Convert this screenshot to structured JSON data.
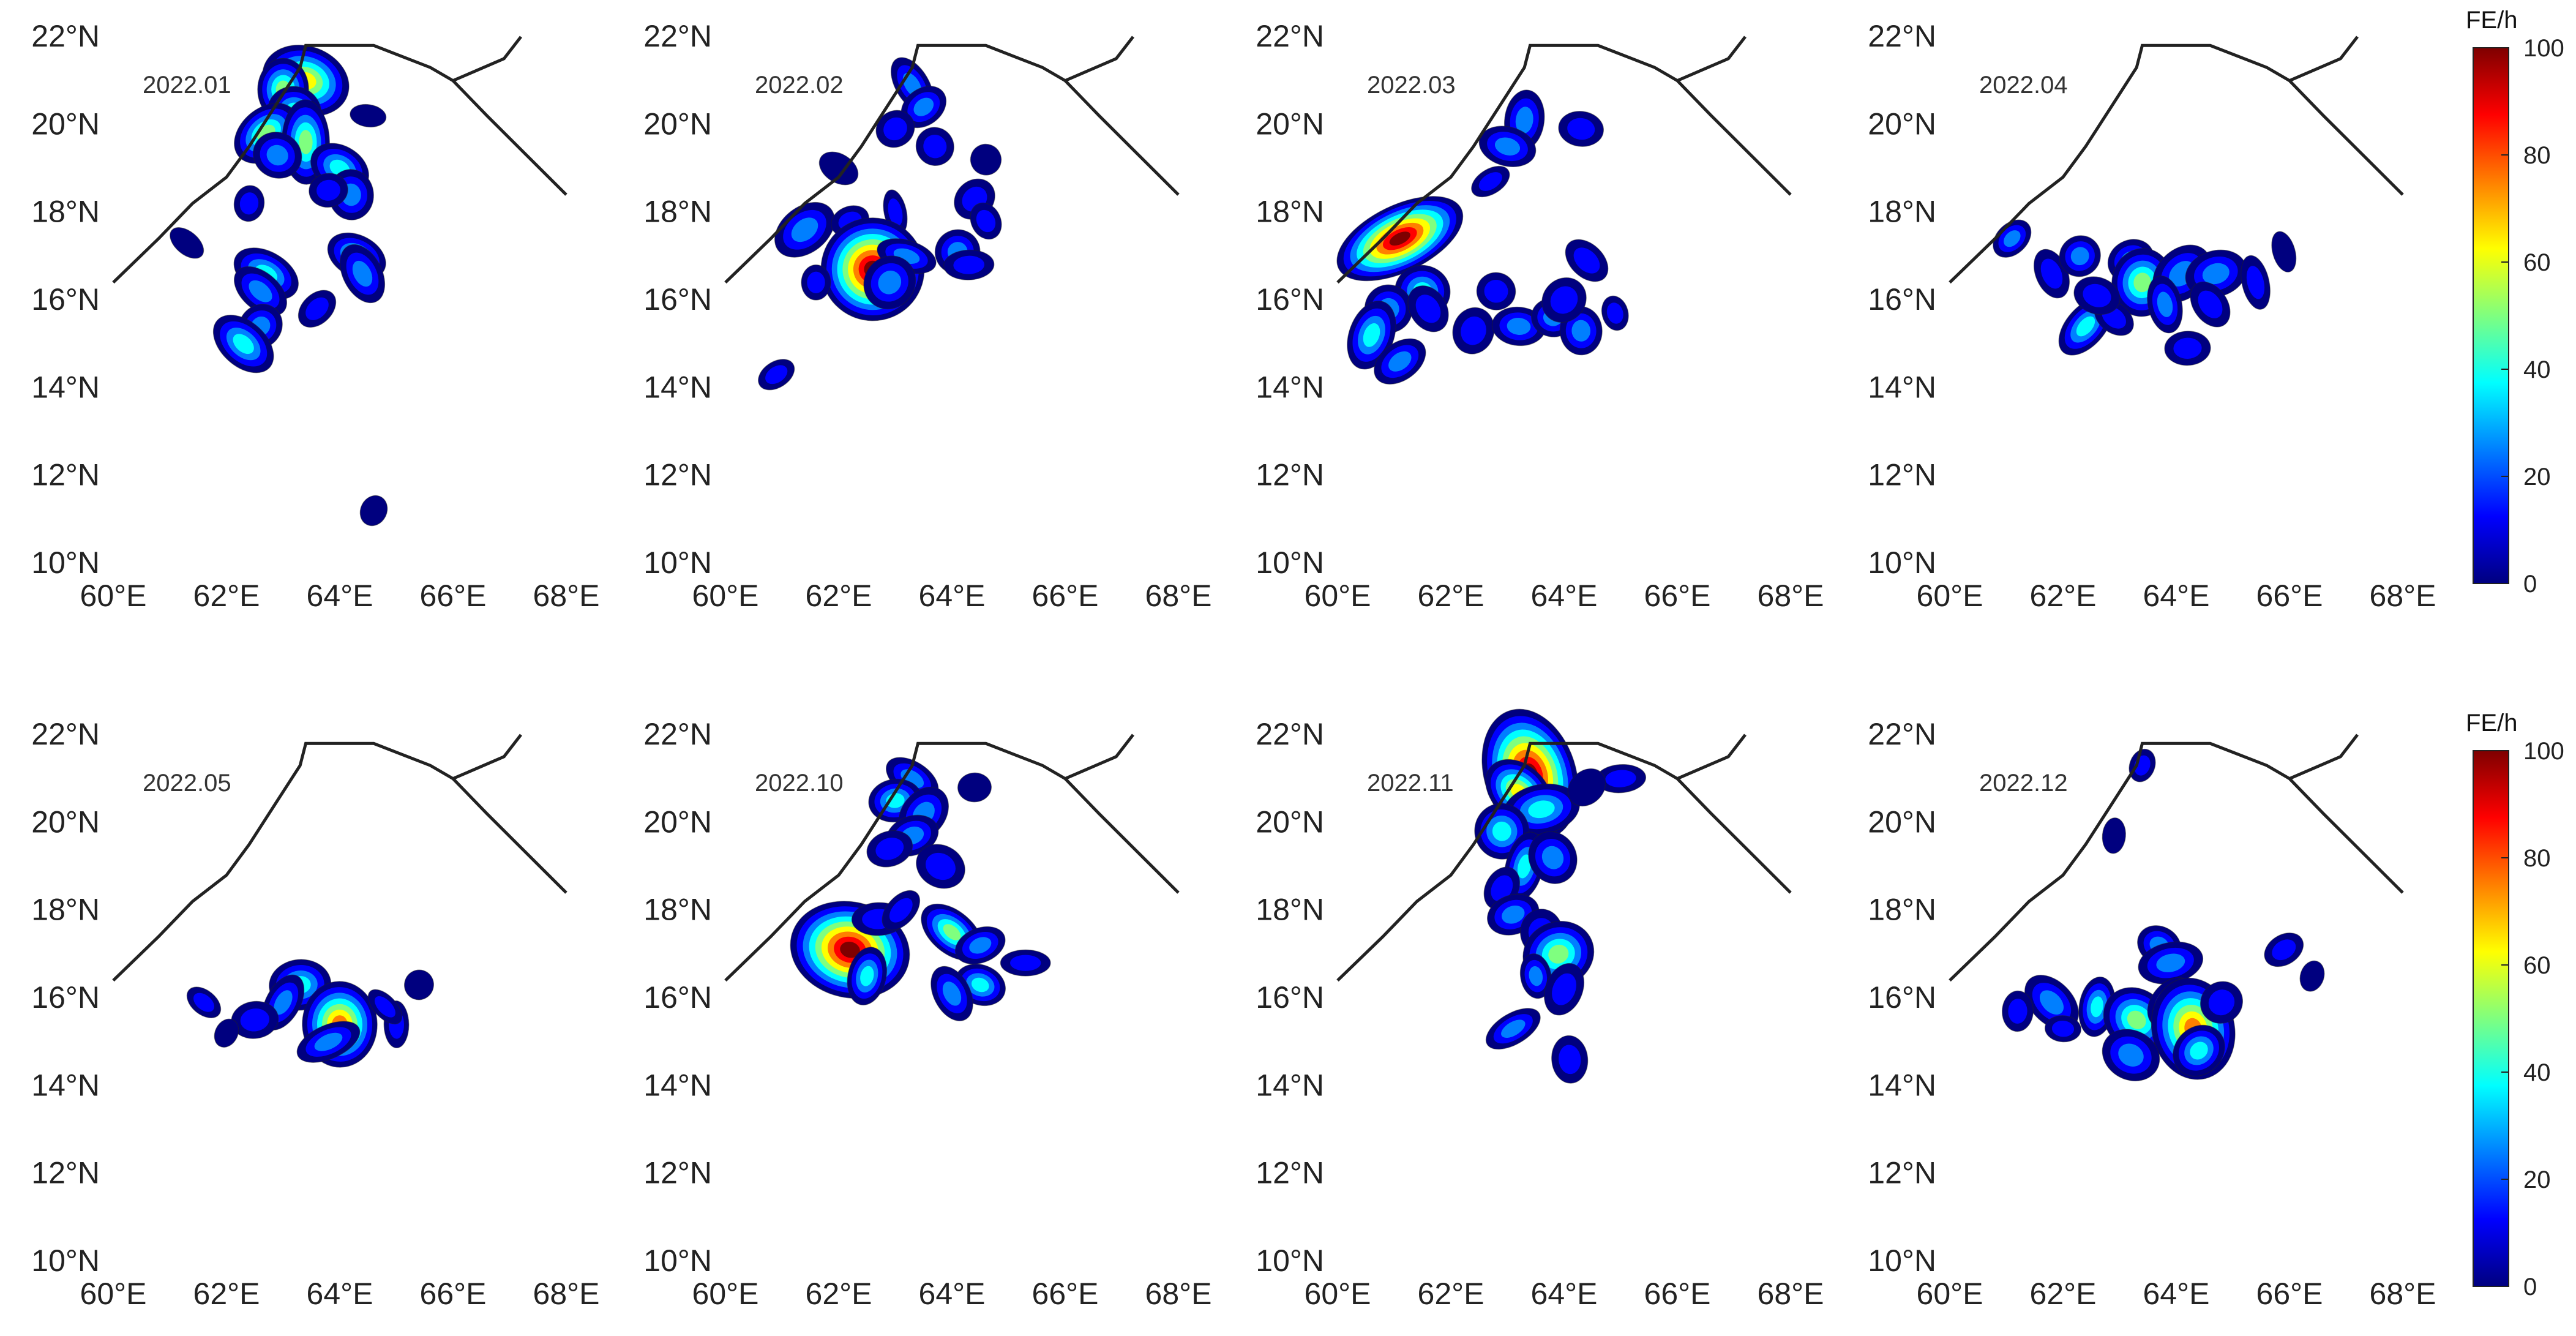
{
  "figure": {
    "x_ticks": [
      "60°E",
      "62°E",
      "64°E",
      "66°E",
      "68°E"
    ],
    "y_ticks": [
      "22°N",
      "20°N",
      "18°N",
      "16°N",
      "14°N",
      "12°N",
      "10°N"
    ],
    "lon_range": [
      60,
      68
    ],
    "lat_range": [
      10,
      22
    ],
    "coastline": [
      [
        60,
        16.4
      ],
      [
        60.8,
        17.4
      ],
      [
        61.4,
        18.2
      ],
      [
        62,
        18.8
      ],
      [
        62.4,
        19.5
      ],
      [
        62.9,
        20.5
      ],
      [
        63.3,
        21.3
      ],
      [
        63.4,
        21.8
      ],
      [
        64.6,
        21.8
      ],
      [
        65.6,
        21.3
      ],
      [
        66,
        21
      ],
      [
        66.6,
        20.2
      ],
      [
        67.3,
        19.3
      ],
      [
        68,
        18.4
      ]
    ],
    "border": [
      [
        66,
        21
      ],
      [
        66.9,
        21.5
      ],
      [
        67.2,
        22
      ]
    ]
  },
  "colorbar": {
    "unit": "FE/h",
    "min": 0,
    "max": 100,
    "ticks": [
      "100",
      "80",
      "60",
      "40",
      "20",
      "0"
    ],
    "colors": [
      "#00007f",
      "#0000ff",
      "#007fff",
      "#00ffff",
      "#7fff7f",
      "#ffff00",
      "#ff7f00",
      "#ff0000",
      "#7f0000"
    ]
  },
  "panels": [
    {
      "title": "2022.01",
      "cells": [
        [
          63.4,
          21.0,
          65
        ],
        [
          63.0,
          20.8,
          45
        ],
        [
          63.2,
          20.3,
          35
        ],
        [
          62.7,
          19.8,
          50
        ],
        [
          63.4,
          19.6,
          55
        ],
        [
          62.9,
          19.3,
          30
        ],
        [
          64.0,
          19.0,
          35
        ],
        [
          64.2,
          18.4,
          30
        ],
        [
          63.8,
          18.5,
          20
        ],
        [
          62.4,
          18.2,
          15
        ],
        [
          62.7,
          16.6,
          40
        ],
        [
          62.6,
          16.2,
          25
        ],
        [
          64.3,
          17.0,
          35
        ],
        [
          64.4,
          16.6,
          30
        ],
        [
          62.6,
          15.4,
          25
        ],
        [
          62.3,
          15.0,
          35
        ],
        [
          63.6,
          15.8,
          15
        ],
        [
          61.3,
          17.3,
          10
        ],
        [
          64.5,
          20.2,
          10
        ],
        [
          64.6,
          11.2,
          5
        ]
      ]
    },
    {
      "title": "2022.02",
      "cells": [
        [
          63.3,
          20.9,
          30
        ],
        [
          63.5,
          20.4,
          25
        ],
        [
          63.0,
          19.9,
          15
        ],
        [
          63.7,
          19.5,
          20
        ],
        [
          62.0,
          19.0,
          10
        ],
        [
          64.6,
          19.2,
          10
        ],
        [
          64.4,
          18.3,
          20
        ],
        [
          61.4,
          17.6,
          30
        ],
        [
          62.2,
          17.8,
          15
        ],
        [
          63.0,
          18.0,
          12
        ],
        [
          62.3,
          17.2,
          35
        ],
        [
          62.6,
          16.7,
          90
        ],
        [
          63.2,
          17.0,
          25
        ],
        [
          62.9,
          16.4,
          30
        ],
        [
          64.1,
          17.1,
          25
        ],
        [
          64.3,
          16.8,
          20
        ],
        [
          61.6,
          16.4,
          12
        ],
        [
          60.9,
          14.3,
          15
        ],
        [
          64.6,
          17.8,
          12
        ]
      ]
    },
    {
      "title": "2022.03",
      "cells": [
        [
          63.3,
          20.1,
          25
        ],
        [
          63.0,
          19.5,
          30
        ],
        [
          64.3,
          19.9,
          15
        ],
        [
          62.7,
          18.7,
          12
        ],
        [
          61.1,
          17.4,
          90
        ],
        [
          61.5,
          16.2,
          40
        ],
        [
          60.9,
          15.8,
          30
        ],
        [
          60.6,
          15.2,
          35
        ],
        [
          61.1,
          14.6,
          30
        ],
        [
          61.6,
          15.8,
          20
        ],
        [
          62.4,
          15.3,
          20
        ],
        [
          63.2,
          15.4,
          25
        ],
        [
          62.8,
          16.2,
          15
        ],
        [
          63.8,
          15.6,
          25
        ],
        [
          64.3,
          15.3,
          25
        ],
        [
          64.0,
          16.0,
          20
        ],
        [
          64.4,
          16.9,
          15
        ],
        [
          64.9,
          15.7,
          15
        ]
      ]
    },
    {
      "title": "2022.04",
      "cells": [
        [
          61.1,
          17.4,
          25
        ],
        [
          61.8,
          16.6,
          20
        ],
        [
          62.3,
          17.0,
          25
        ],
        [
          63.2,
          16.9,
          25
        ],
        [
          63.4,
          16.4,
          55
        ],
        [
          64.1,
          16.6,
          30
        ],
        [
          64.7,
          16.6,
          25
        ],
        [
          63.8,
          15.9,
          25
        ],
        [
          62.4,
          15.4,
          35
        ],
        [
          62.9,
          15.6,
          20
        ],
        [
          64.6,
          15.9,
          15
        ],
        [
          65.4,
          16.4,
          20
        ],
        [
          64.2,
          14.9,
          15
        ],
        [
          65.9,
          17.1,
          10
        ],
        [
          62.6,
          16.1,
          20
        ]
      ]
    },
    {
      "title": "2022.05",
      "cells": [
        [
          63.3,
          16.3,
          40
        ],
        [
          63.0,
          15.9,
          25
        ],
        [
          64.0,
          15.4,
          70
        ],
        [
          63.8,
          15.0,
          30
        ],
        [
          61.6,
          15.9,
          15
        ],
        [
          62.5,
          15.5,
          15
        ],
        [
          65.0,
          15.4,
          15
        ],
        [
          64.8,
          15.8,
          12
        ],
        [
          62.0,
          15.2,
          10
        ],
        [
          65.4,
          16.3,
          8
        ]
      ]
    },
    {
      "title": "2022.10",
      "cells": [
        [
          63.3,
          21.0,
          30
        ],
        [
          63.0,
          20.5,
          40
        ],
        [
          63.5,
          20.2,
          30
        ],
        [
          63.3,
          19.7,
          25
        ],
        [
          62.9,
          19.4,
          20
        ],
        [
          63.8,
          19.0,
          20
        ],
        [
          62.1,
          17.5,
          30
        ],
        [
          62.2,
          17.1,
          90
        ],
        [
          62.5,
          16.5,
          40
        ],
        [
          62.7,
          17.8,
          20
        ],
        [
          63.1,
          18.0,
          15
        ],
        [
          64.0,
          17.5,
          45
        ],
        [
          64.5,
          17.2,
          25
        ],
        [
          64.5,
          16.3,
          35
        ],
        [
          64.0,
          16.1,
          25
        ],
        [
          65.3,
          16.8,
          15
        ],
        [
          64.4,
          20.8,
          10
        ]
      ]
    },
    {
      "title": "2022.11",
      "cells": [
        [
          63.4,
          21.1,
          95
        ],
        [
          63.2,
          20.7,
          60
        ],
        [
          63.6,
          20.3,
          40
        ],
        [
          62.9,
          19.8,
          35
        ],
        [
          63.3,
          19.0,
          40
        ],
        [
          63.8,
          19.2,
          25
        ],
        [
          62.9,
          18.5,
          20
        ],
        [
          63.1,
          17.9,
          25
        ],
        [
          63.6,
          17.5,
          20
        ],
        [
          63.9,
          17.0,
          45
        ],
        [
          63.5,
          16.5,
          25
        ],
        [
          64.0,
          16.2,
          20
        ],
        [
          63.1,
          15.3,
          25
        ],
        [
          64.1,
          14.6,
          15
        ],
        [
          65.0,
          21.0,
          15
        ],
        [
          64.4,
          20.8,
          10
        ]
      ]
    },
    {
      "title": "2022.12",
      "cells": [
        [
          63.4,
          21.3,
          15
        ],
        [
          62.9,
          19.7,
          10
        ],
        [
          63.7,
          17.2,
          25
        ],
        [
          63.9,
          16.8,
          30
        ],
        [
          61.8,
          15.9,
          30
        ],
        [
          62.6,
          15.8,
          35
        ],
        [
          63.3,
          15.5,
          55
        ],
        [
          63.9,
          15.9,
          30
        ],
        [
          64.3,
          15.3,
          70
        ],
        [
          64.4,
          14.8,
          35
        ],
        [
          63.2,
          14.7,
          30
        ],
        [
          62.0,
          15.3,
          15
        ],
        [
          64.8,
          15.9,
          20
        ],
        [
          65.9,
          17.1,
          15
        ],
        [
          66.4,
          16.5,
          10
        ],
        [
          61.2,
          15.7,
          12
        ]
      ]
    }
  ]
}
